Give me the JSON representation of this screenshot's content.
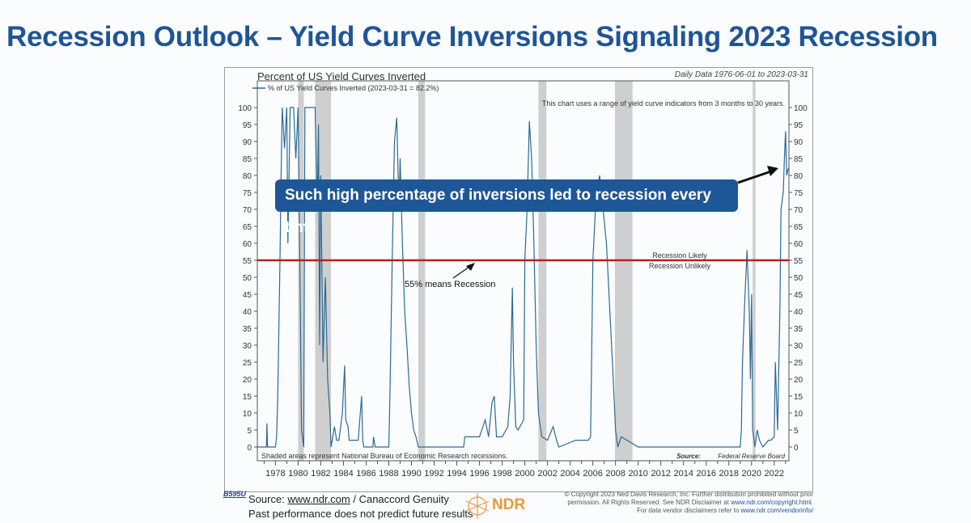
{
  "slide_title": "Recession Outlook – Yield Curve Inversions Signaling 2023 Recession",
  "callout": "Such high percentage of inversions led to recession every time",
  "annotation_55": "55% means Recession",
  "footer": {
    "code": "B595U",
    "source_prefix": "Source: ",
    "source_link": "www.ndr.com",
    "source_suffix": " / Canaccord Genuity",
    "disclaimer": "Past performance does not predict future results",
    "logo_text": "NDR",
    "copyright_1": "© Copyright 2023 Ned Davis Research, Inc. Further distribution prohibited without prior",
    "copyright_2": "permission. All Rights Reserved. See NDR Disclaimer at ",
    "copyright_2_link": "www.ndr.com/copyright.html.",
    "copyright_3": "For data vendor disclaimers refer to ",
    "copyright_3_link": "www.ndr.com/vendorinfo/"
  },
  "colors": {
    "line": "#2c6a94",
    "threshold": "#b22222",
    "recession": "#cfcfcf",
    "brand": "#1f5597"
  },
  "chart_data": {
    "type": "line",
    "title": "Percent of US Yield Curves Inverted",
    "subtitle": "Daily Data 1976-06-01 to 2023-03-31",
    "legend": "% of US Yield Curves Inverted (2023-03-31 = 82.2%)",
    "note": "This chart uses a range of yield curve indicators from 3 months to 30 years.",
    "shading_note": "Shaded areas represent National Bureau of Economic Research recessions.",
    "source_label": "Source:",
    "source": "Federal Reserve Board",
    "threshold": {
      "value": 55,
      "label_above": "Recession Likely",
      "label_below": "Recession Unlikely"
    },
    "xlim": [
      1976.4,
      2023.3
    ],
    "ylim": [
      0,
      100
    ],
    "x_ticks": [
      "1978",
      "1980",
      "1982",
      "1984",
      "1986",
      "1988",
      "1990",
      "1992",
      "1994",
      "1996",
      "1998",
      "2000",
      "2002",
      "2004",
      "2006",
      "2008",
      "2010",
      "2012",
      "2014",
      "2016",
      "2018",
      "2020",
      "2022"
    ],
    "y_ticks": [
      "0",
      "5",
      "10",
      "15",
      "20",
      "25",
      "30",
      "35",
      "40",
      "45",
      "50",
      "55",
      "60",
      "65",
      "70",
      "75",
      "80",
      "85",
      "90",
      "95",
      "100"
    ],
    "recessions": [
      [
        1980.0,
        1980.5
      ],
      [
        1981.5,
        1982.9
      ],
      [
        1990.6,
        1991.2
      ],
      [
        2001.2,
        2001.9
      ],
      [
        2007.95,
        2009.5
      ],
      [
        2020.1,
        2020.35
      ]
    ],
    "series": [
      {
        "name": "% of US Yield Curves Inverted",
        "points": [
          [
            1976.4,
            0
          ],
          [
            1977.2,
            0
          ],
          [
            1977.25,
            7
          ],
          [
            1977.3,
            0
          ],
          [
            1978.0,
            0
          ],
          [
            1978.1,
            3
          ],
          [
            1978.2,
            14
          ],
          [
            1978.4,
            55
          ],
          [
            1978.5,
            80
          ],
          [
            1978.6,
            100
          ],
          [
            1978.8,
            88
          ],
          [
            1979.0,
            100
          ],
          [
            1979.1,
            60
          ],
          [
            1979.3,
            100
          ],
          [
            1979.6,
            100
          ],
          [
            1979.8,
            85
          ],
          [
            1980.0,
            100
          ],
          [
            1980.2,
            40
          ],
          [
            1980.3,
            5
          ],
          [
            1980.5,
            0
          ],
          [
            1980.6,
            100
          ],
          [
            1981.0,
            100
          ],
          [
            1981.5,
            100
          ],
          [
            1981.7,
            70
          ],
          [
            1981.8,
            95
          ],
          [
            1981.9,
            30
          ],
          [
            1982.0,
            80
          ],
          [
            1982.2,
            25
          ],
          [
            1982.4,
            50
          ],
          [
            1982.6,
            20
          ],
          [
            1982.8,
            10
          ],
          [
            1982.9,
            0
          ],
          [
            1983.0,
            2
          ],
          [
            1983.2,
            6
          ],
          [
            1983.4,
            2
          ],
          [
            1983.6,
            2
          ],
          [
            1983.9,
            10
          ],
          [
            1984.1,
            24
          ],
          [
            1984.2,
            8
          ],
          [
            1984.4,
            6
          ],
          [
            1984.5,
            2
          ],
          [
            1985.3,
            2
          ],
          [
            1985.6,
            15
          ],
          [
            1985.7,
            2
          ],
          [
            1985.8,
            0
          ],
          [
            1986.6,
            0
          ],
          [
            1986.65,
            3
          ],
          [
            1986.8,
            0
          ],
          [
            1988.0,
            0
          ],
          [
            1988.1,
            15
          ],
          [
            1988.3,
            55
          ],
          [
            1988.5,
            90
          ],
          [
            1988.7,
            97
          ],
          [
            1988.9,
            70
          ],
          [
            1989.0,
            85
          ],
          [
            1989.2,
            60
          ],
          [
            1989.4,
            40
          ],
          [
            1989.6,
            30
          ],
          [
            1989.8,
            18
          ],
          [
            1990.0,
            10
          ],
          [
            1990.2,
            5
          ],
          [
            1990.4,
            3
          ],
          [
            1990.6,
            0
          ],
          [
            1994.6,
            0
          ],
          [
            1994.7,
            3
          ],
          [
            1996.0,
            3
          ],
          [
            1996.5,
            8
          ],
          [
            1996.8,
            3
          ],
          [
            1997.1,
            13
          ],
          [
            1997.3,
            15
          ],
          [
            1997.5,
            3
          ],
          [
            1998.0,
            3
          ],
          [
            1998.5,
            6
          ],
          [
            1998.7,
            15
          ],
          [
            1998.9,
            47
          ],
          [
            1999.0,
            25
          ],
          [
            1999.2,
            6
          ],
          [
            1999.4,
            5
          ],
          [
            1999.9,
            8
          ],
          [
            2000.0,
            55
          ],
          [
            2000.2,
            70
          ],
          [
            2000.4,
            96
          ],
          [
            2000.6,
            85
          ],
          [
            2000.8,
            60
          ],
          [
            2001.0,
            30
          ],
          [
            2001.2,
            10
          ],
          [
            2001.5,
            3
          ],
          [
            2002.0,
            2
          ],
          [
            2002.5,
            6
          ],
          [
            2002.8,
            2
          ],
          [
            2003.0,
            0
          ],
          [
            2004.5,
            2
          ],
          [
            2005.0,
            2
          ],
          [
            2005.6,
            2
          ],
          [
            2005.8,
            3
          ],
          [
            2006.0,
            55
          ],
          [
            2006.3,
            75
          ],
          [
            2006.6,
            80
          ],
          [
            2006.9,
            70
          ],
          [
            2007.2,
            60
          ],
          [
            2007.5,
            40
          ],
          [
            2007.8,
            20
          ],
          [
            2008.0,
            5
          ],
          [
            2008.2,
            0
          ],
          [
            2008.5,
            3
          ],
          [
            2010.0,
            0
          ],
          [
            2019.0,
            0
          ],
          [
            2019.1,
            5
          ],
          [
            2019.2,
            25
          ],
          [
            2019.4,
            43
          ],
          [
            2019.6,
            58
          ],
          [
            2019.8,
            40
          ],
          [
            2019.9,
            20
          ],
          [
            2020.0,
            45
          ],
          [
            2020.1,
            5
          ],
          [
            2020.3,
            0
          ],
          [
            2020.5,
            5
          ],
          [
            2020.7,
            2
          ],
          [
            2021.0,
            0
          ],
          [
            2021.5,
            2
          ],
          [
            2021.7,
            2
          ],
          [
            2022.0,
            3
          ],
          [
            2022.1,
            25
          ],
          [
            2022.3,
            5
          ],
          [
            2022.5,
            40
          ],
          [
            2022.6,
            70
          ],
          [
            2022.8,
            75
          ],
          [
            2022.9,
            85
          ],
          [
            2023.0,
            93
          ],
          [
            2023.1,
            80
          ],
          [
            2023.25,
            82.2
          ]
        ]
      }
    ]
  }
}
